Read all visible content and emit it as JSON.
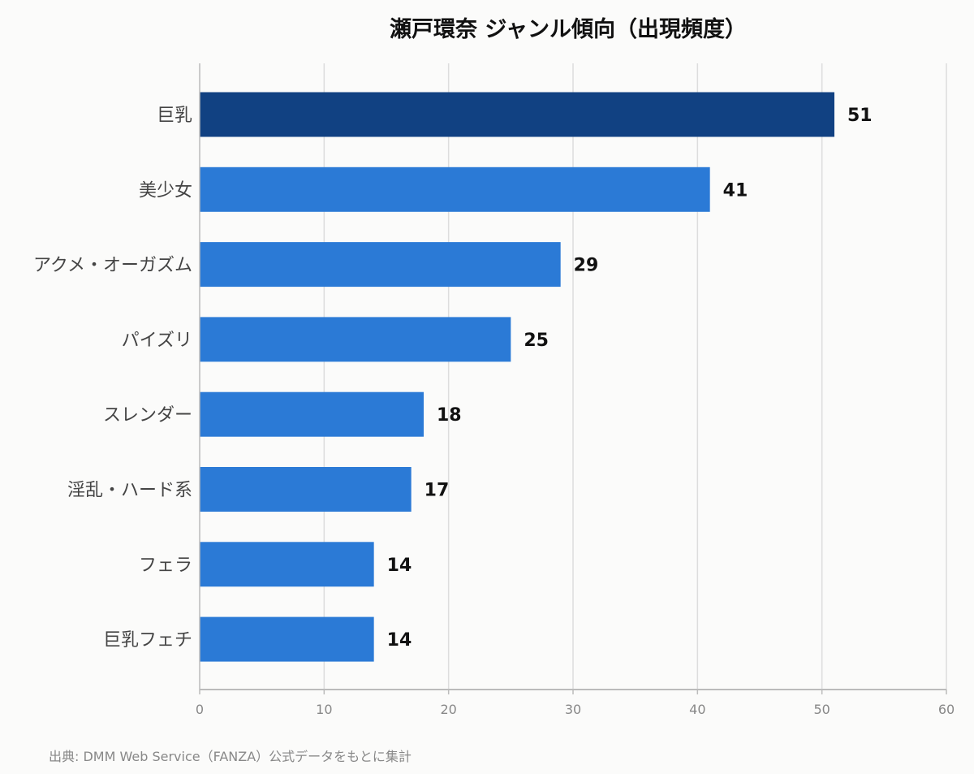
{
  "chart_data": {
    "type": "bar",
    "orientation": "horizontal",
    "title": "瀬戸環奈 ジャンル傾向（出現頻度）",
    "categories": [
      "巨乳",
      "美少女",
      "アクメ・オーガズム",
      "パイズリ",
      "スレンダー",
      "淫乱・ハード系",
      "フェラ",
      "巨乳フェチ"
    ],
    "values": [
      51,
      41,
      29,
      25,
      18,
      17,
      14,
      14
    ],
    "xlim": [
      0,
      60
    ],
    "xticks": [
      0,
      10,
      20,
      30,
      40,
      50,
      60
    ],
    "grid": true,
    "data_labels": true,
    "colors": {
      "highlight": "#114182",
      "bar": "#2b7ad6",
      "grid": "#dddddd",
      "axis": "#bbbbbb"
    }
  },
  "source_note": "出典: DMM Web Service（FANZA）公式データをもとに集計"
}
